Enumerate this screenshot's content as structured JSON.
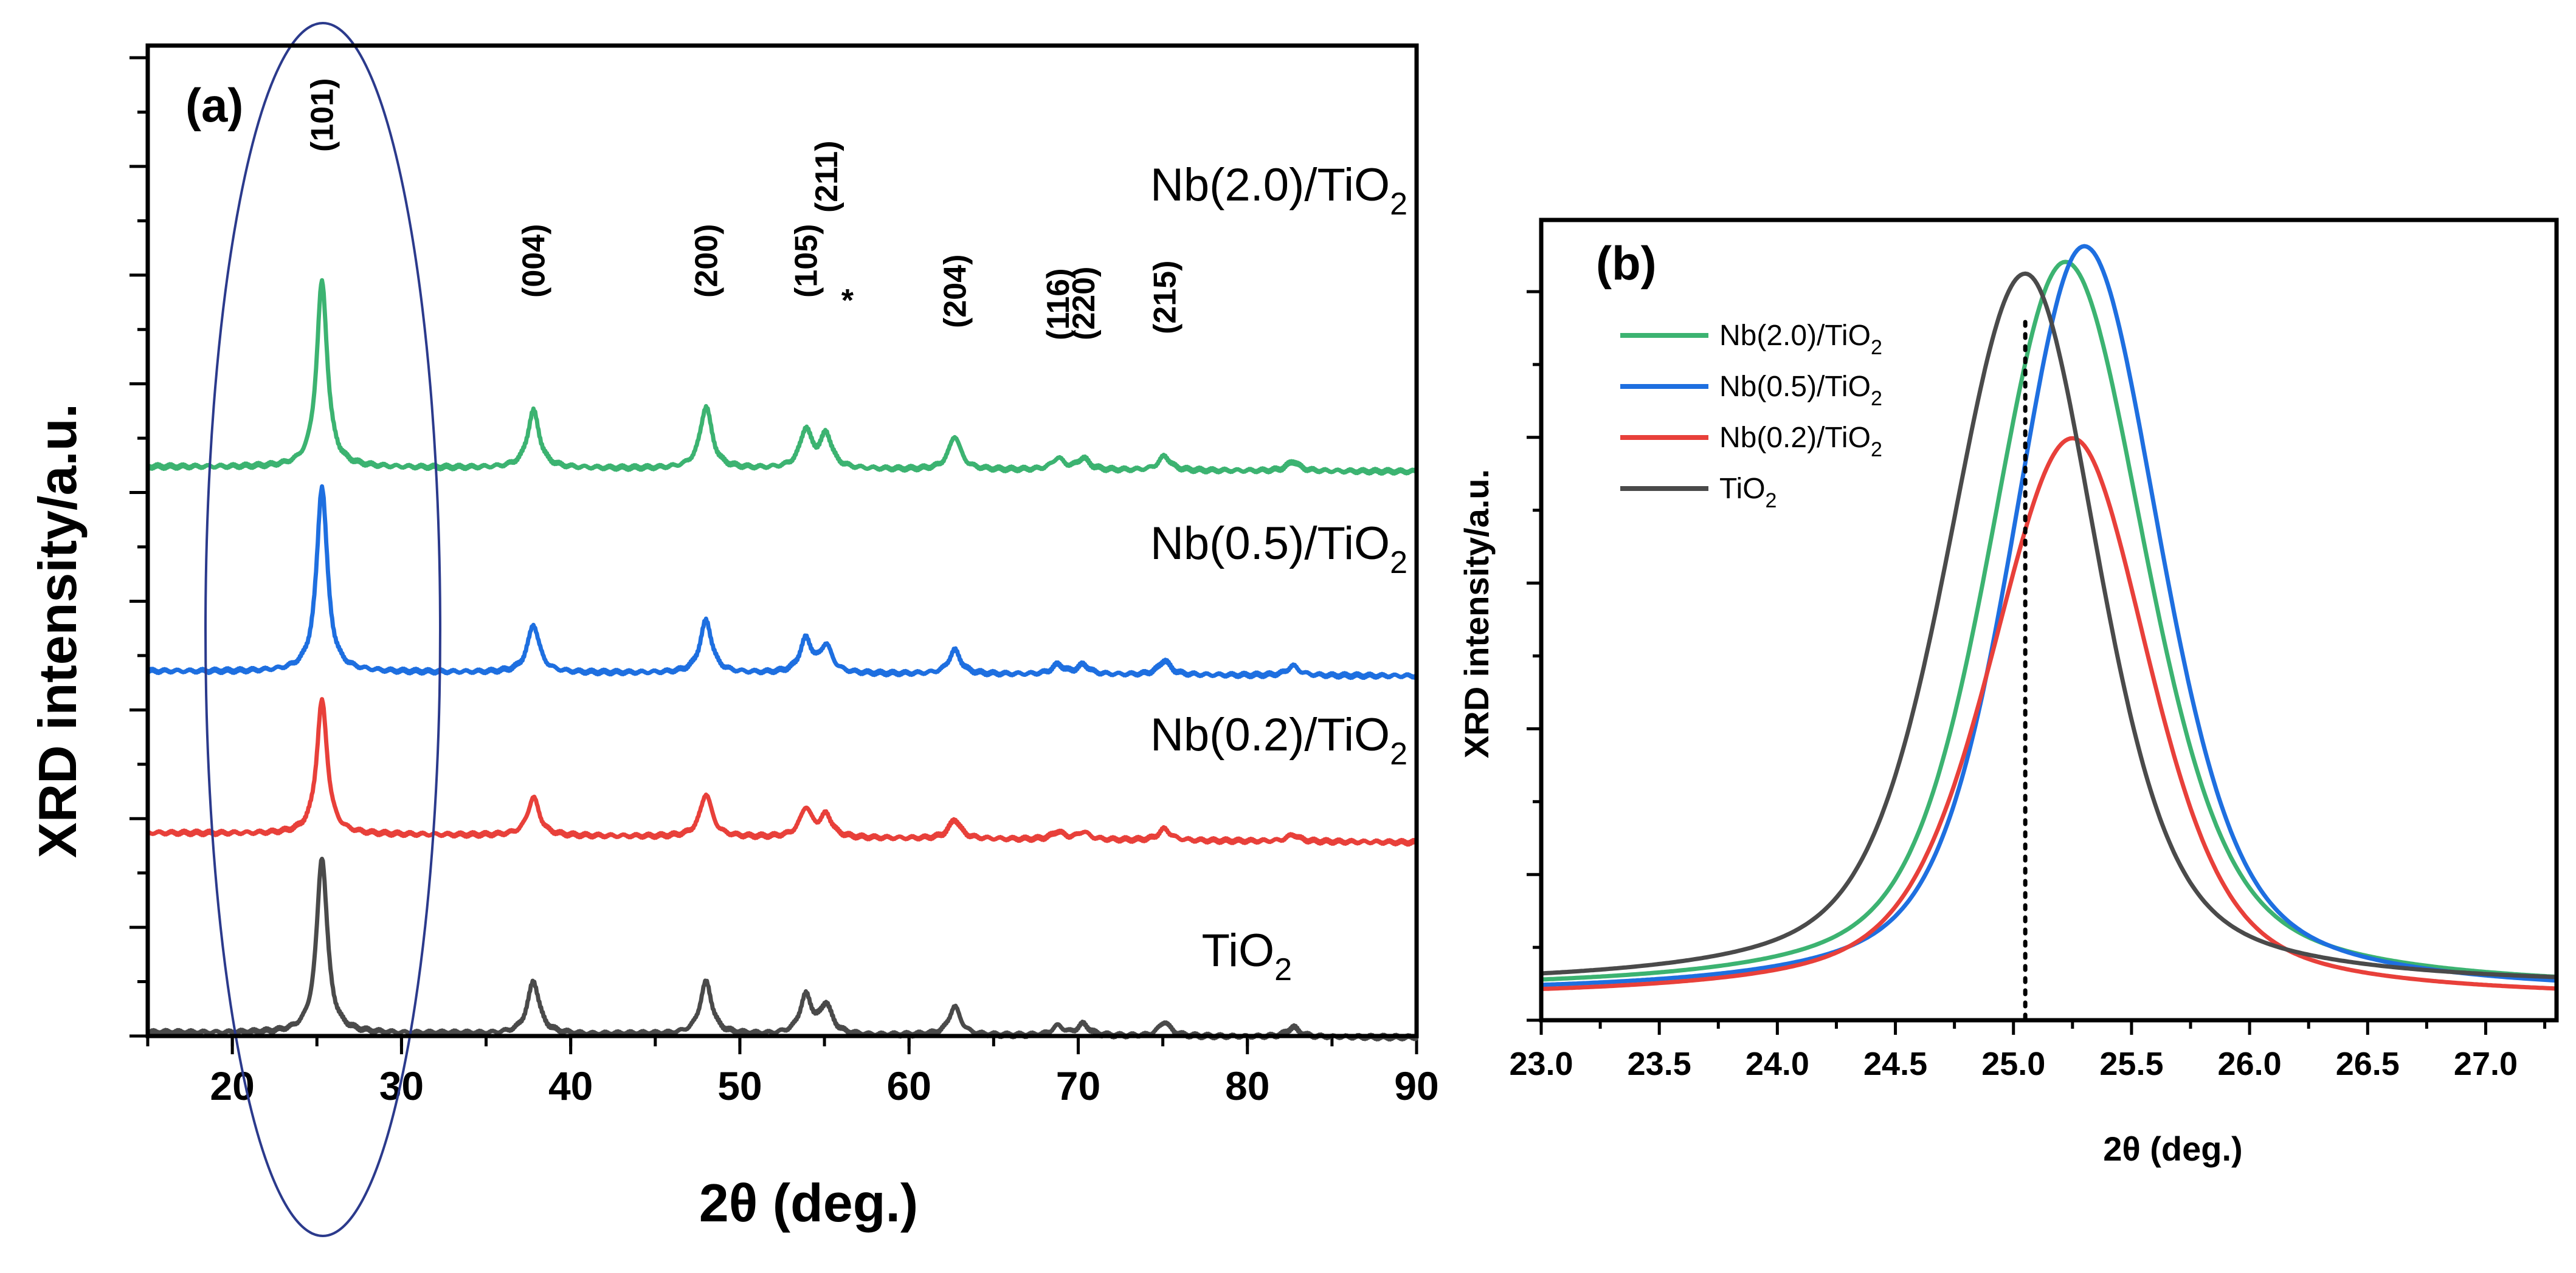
{
  "figure": {
    "panel_a": {
      "label": "(a)",
      "xlabel": "2θ (deg.)",
      "ylabel": "XRD intensity/a.u."
    },
    "panel_b": {
      "label": "(b)",
      "xlabel": "2θ (deg.)",
      "ylabel": "XRD intensity/a.u."
    }
  },
  "chart_data": [
    {
      "type": "line",
      "panel": "a",
      "title": "",
      "xlabel": "2θ (deg.)",
      "ylabel": "XRD intensity/a.u.",
      "xlim": [
        15,
        90
      ],
      "xticks": [
        20,
        30,
        40,
        50,
        60,
        70,
        80,
        90
      ],
      "y_ticks": "unlabeled",
      "ylim": [
        0,
        10
      ],
      "peak_positions": [
        25.3,
        37.8,
        48.0,
        53.9,
        55.1,
        62.7,
        68.8,
        70.3,
        75.1,
        82.7
      ],
      "peak_labels": [
        {
          "text": "(101)",
          "x": 25.3
        },
        {
          "text": "(004)",
          "x": 37.8
        },
        {
          "text": "(200)",
          "x": 48.0
        },
        {
          "text": "(105)",
          "x": 53.9
        },
        {
          "text": "(211)",
          "x": 55.1
        },
        {
          "text": "*",
          "x": 56.0
        },
        {
          "text": "(204)",
          "x": 62.7
        },
        {
          "text": "(116)",
          "x": 68.8
        },
        {
          "text": "(220)",
          "x": 70.3
        },
        {
          "text": "(215)",
          "x": 75.1
        }
      ],
      "annotation": "ellipse around (101) peak",
      "series": [
        {
          "name": "Nb(2.0)/TiO2",
          "label_main": "Nb(2.0)/TiO",
          "label_sub": "2",
          "color": "#3cb371",
          "baseline": 6.05,
          "baseline_end": 6.0,
          "peak_heights": [
            1.95,
            0.6,
            0.65,
            0.4,
            0.35,
            0.35,
            0.12,
            0.12,
            0.15,
            0.1
          ]
        },
        {
          "name": "Nb(0.5)/TiO2",
          "label_main": "Nb(0.5)/TiO",
          "label_sub": "2",
          "color": "#1e6fe0",
          "baseline": 3.9,
          "baseline_end": 3.85,
          "peak_heights": [
            1.95,
            0.5,
            0.55,
            0.35,
            0.28,
            0.25,
            0.1,
            0.1,
            0.15,
            0.1
          ]
        },
        {
          "name": "Nb(0.2)/TiO2",
          "label_main": "Nb(0.2)/TiO",
          "label_sub": "2",
          "color": "#e8403a",
          "baseline": 2.2,
          "baseline_end": 2.1,
          "peak_heights": [
            1.4,
            0.4,
            0.45,
            0.3,
            0.23,
            0.2,
            0.08,
            0.08,
            0.12,
            0.07
          ]
        },
        {
          "name": "TiO2",
          "label_main": "TiO",
          "label_sub": "2",
          "color": "#4a4a4a",
          "baseline": 0.1,
          "baseline_end": 0.05,
          "peak_heights": [
            1.85,
            0.55,
            0.55,
            0.4,
            0.3,
            0.3,
            0.1,
            0.12,
            0.15,
            0.1
          ]
        }
      ]
    },
    {
      "type": "line",
      "panel": "b",
      "title": "",
      "xlabel": "2θ (deg.)",
      "ylabel": "XRD intensity/a.u.",
      "xlim": [
        23.0,
        27.3
      ],
      "xticks": [
        "23.0",
        "23.5",
        "24.0",
        "24.5",
        "25.0",
        "25.5",
        "26.0",
        "26.5",
        "27.0"
      ],
      "y_ticks": "unlabeled",
      "ylim": [
        0,
        10
      ],
      "reference_line": {
        "x": 25.05,
        "style": "dotted"
      },
      "legend_position": "top-left",
      "series": [
        {
          "name": "Nb(2.0)/TiO2",
          "label_main": "Nb(2.0)/TiO",
          "label_sub": "2",
          "color": "#3cb371",
          "peak_x": 25.22,
          "peak_y": 9.45,
          "base": 0.15,
          "width_left": 0.42,
          "width_right": 0.44
        },
        {
          "name": "Nb(0.5)/TiO2",
          "label_main": "Nb(0.5)/TiO",
          "label_sub": "2",
          "color": "#1e6fe0",
          "peak_x": 25.3,
          "peak_y": 9.65,
          "base": 0.1,
          "width_left": 0.4,
          "width_right": 0.42
        },
        {
          "name": "Nb(0.2)/TiO2",
          "label_main": "Nb(0.2)/TiO",
          "label_sub": "2",
          "color": "#e8403a",
          "peak_x": 25.25,
          "peak_y": 7.2,
          "base": 0.05,
          "width_left": 0.45,
          "width_right": 0.42
        },
        {
          "name": "TiO2",
          "label_main": "TiO",
          "label_sub": "2",
          "color": "#4a4a4a",
          "peak_x": 25.05,
          "peak_y": 9.3,
          "base": 0.2,
          "width_left": 0.43,
          "width_right": 0.4
        }
      ]
    }
  ]
}
